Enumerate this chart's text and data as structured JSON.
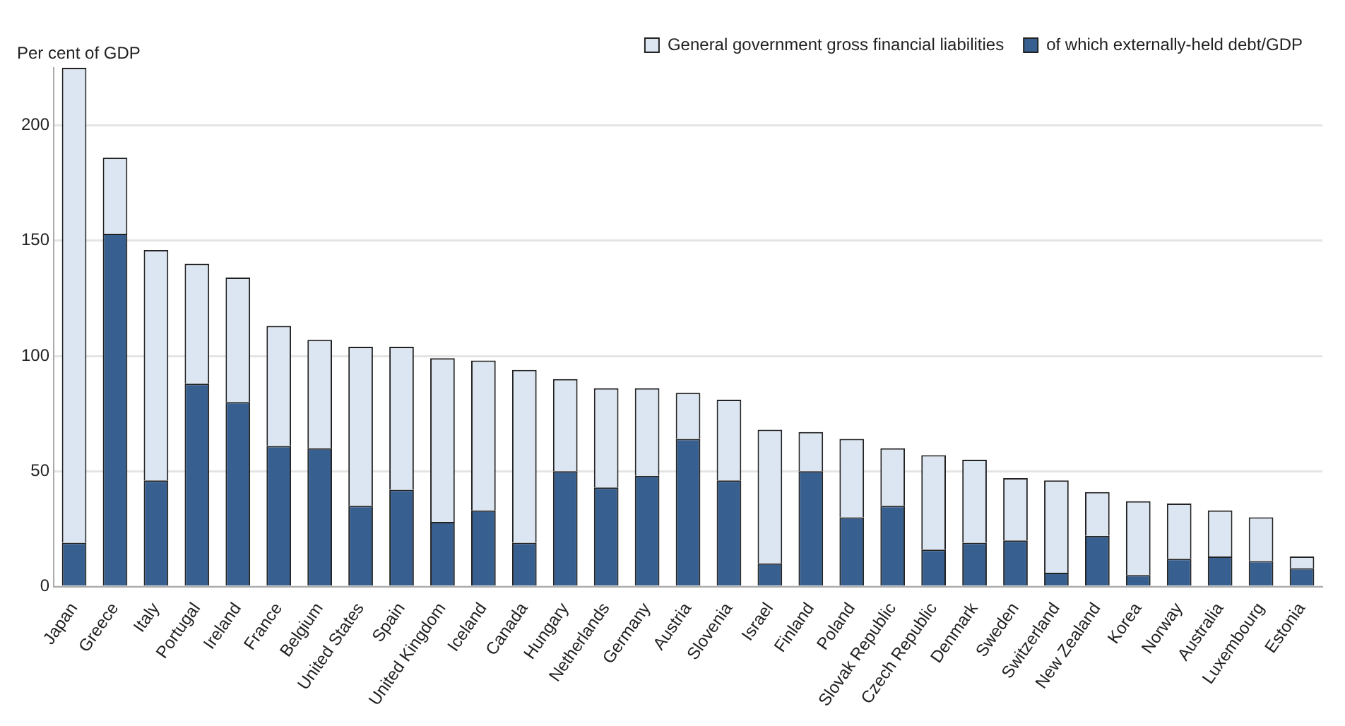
{
  "chart_data": {
    "type": "bar",
    "ylabel": "Per cent of GDP",
    "stacked": true,
    "categories": [
      "Japan",
      "Greece",
      "Italy",
      "Portugal",
      "Ireland",
      "France",
      "Belgium",
      "United States",
      "Spain",
      "United Kingdom",
      "Iceland",
      "Canada",
      "Hungary",
      "Netherlands",
      "Germany",
      "Austria",
      "Slovenia",
      "Israel",
      "Finland",
      "Poland",
      "Slovak Republic",
      "Czech Republic",
      "Denmark",
      "Sweden",
      "Switzerland",
      "New Zealand",
      "Korea",
      "Norway",
      "Australia",
      "Luxembourg",
      "Estonia"
    ],
    "series": [
      {
        "name": "of which externally-held debt/GDP",
        "color": "#375f8f",
        "values": [
          19,
          153,
          46,
          88,
          80,
          61,
          60,
          35,
          42,
          28,
          33,
          19,
          50,
          43,
          48,
          64,
          46,
          10,
          50,
          30,
          35,
          16,
          19,
          20,
          6,
          22,
          5,
          12,
          13,
          11,
          8
        ]
      },
      {
        "name": "General government gross financial liabilities",
        "color": "#dce6f2",
        "values": [
          206,
          33,
          100,
          52,
          54,
          52,
          47,
          69,
          62,
          71,
          65,
          75,
          40,
          43,
          38,
          20,
          35,
          58,
          17,
          34,
          25,
          41,
          36,
          27,
          40,
          19,
          32,
          24,
          20,
          19,
          5
        ]
      }
    ],
    "ylim": [
      0,
      225
    ],
    "yticks": [
      0,
      50,
      100,
      150,
      200
    ],
    "grid": "y",
    "legend": "top"
  }
}
